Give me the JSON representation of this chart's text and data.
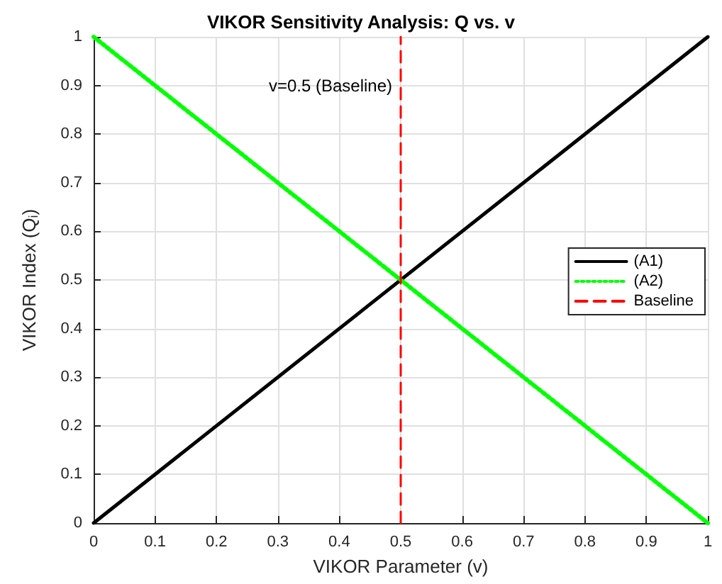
{
  "chart_data": {
    "type": "line",
    "title": "VIKOR Sensitivity Analysis: Q vs. v",
    "xlabel": "VIKOR Parameter (v)",
    "ylabel": "VIKOR Index (Q$_{i}$)",
    "x": [
      0,
      1
    ],
    "series": [
      {
        "name": "(A1)",
        "color": "#000000",
        "line_style": "solid",
        "values": [
          0,
          1
        ]
      },
      {
        "name": "(A2)",
        "color": "#00ff00",
        "line_style": "dotted",
        "values": [
          1,
          0
        ]
      },
      {
        "name": "Baseline",
        "color": "#ff0000",
        "line_style": "dashed",
        "x": [
          0.5,
          0.5
        ],
        "values": [
          0,
          1
        ]
      }
    ],
    "annotations": [
      {
        "text": "v=0.5 (Baseline)",
        "x": 0.5,
        "y": 0.9
      }
    ],
    "xlim": [
      0,
      1
    ],
    "ylim": [
      0,
      1
    ],
    "xticks": [
      0,
      0.1,
      0.2,
      0.3,
      0.4,
      0.5,
      0.6,
      0.7,
      0.8,
      0.9,
      1
    ],
    "yticks": [
      0,
      0.1,
      0.2,
      0.3,
      0.4,
      0.5,
      0.6,
      0.7,
      0.8,
      0.9,
      1
    ],
    "grid": true,
    "legend": "right",
    "marker": "none"
  }
}
